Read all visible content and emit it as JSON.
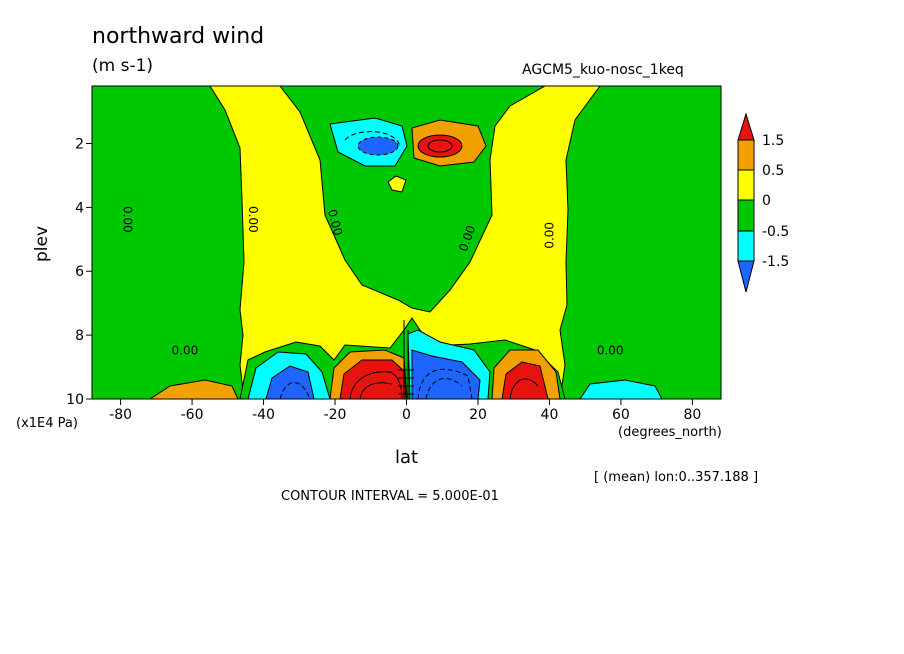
{
  "chart_data": {
    "type": "heatmap",
    "title": "northward wind",
    "units": "(m s-1)",
    "dataset": "AGCM5_kuo-nosc_1keq",
    "xlabel": "lat",
    "xunit": "(degrees_north)",
    "ylabel": "plev",
    "yunit": "(x1E4 Pa)",
    "xlim": [
      -88,
      88
    ],
    "ylim": [
      10,
      0.2
    ],
    "xticks": [
      "-80",
      "-60",
      "-40",
      "-20",
      "0",
      "20",
      "40",
      "60",
      "80"
    ],
    "yticks": [
      "2",
      "4",
      "6",
      "8",
      "10"
    ],
    "mean_note": "[ (mean) lon:0..357.188 ]",
    "contour_interval": "CONTOUR INTERVAL = 5.000E-01",
    "contour_label": "0.00",
    "colorbar": {
      "levels": [
        "1.5",
        "0.5",
        "0",
        "-0.5",
        "-1.5"
      ],
      "colors": [
        "#e8120e",
        "#f2a100",
        "#ffff00",
        "#00c800",
        "#00ffff",
        "#1e64ff"
      ]
    },
    "features": [
      {
        "sign": "negative",
        "lat": -3,
        "plev": 2.0,
        "value": -1.5
      },
      {
        "sign": "positive",
        "lat": 6,
        "plev": 2.0,
        "value": 1.5
      },
      {
        "sign": "negative",
        "lat": -30,
        "plev": 9.4,
        "value": -1.5
      },
      {
        "sign": "positive",
        "lat": -5,
        "plev": 9.3,
        "value": 2.5
      },
      {
        "sign": "negative",
        "lat": 10,
        "plev": 9.2,
        "value": -2.5
      },
      {
        "sign": "positive",
        "lat": 32,
        "plev": 9.3,
        "value": 1.5
      },
      {
        "sign": "positive",
        "lat": -56,
        "plev": 9.8,
        "value": 0.5
      },
      {
        "sign": "negative",
        "lat": 62,
        "plev": 9.9,
        "value": -0.5
      }
    ]
  }
}
